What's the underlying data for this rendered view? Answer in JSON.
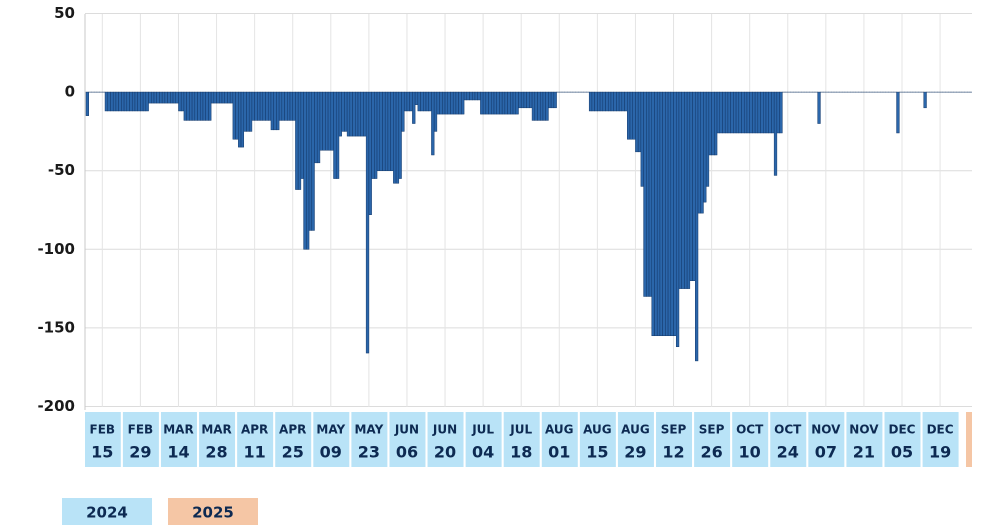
{
  "chart_data": {
    "type": "bar",
    "color": "#2b66aa",
    "edge_color": "#12386a",
    "grid": true,
    "ylim": [
      -200,
      50
    ],
    "yticks": [
      50,
      0,
      -50,
      -100,
      -150,
      -200
    ],
    "xlim": [
      0,
      326
    ],
    "xticks": [
      {
        "value": 6,
        "month": "FEB",
        "day": "15"
      },
      {
        "value": 20,
        "month": "FEB",
        "day": "29"
      },
      {
        "value": 34,
        "month": "MAR",
        "day": "14"
      },
      {
        "value": 48,
        "month": "MAR",
        "day": "28"
      },
      {
        "value": 62,
        "month": "APR",
        "day": "11"
      },
      {
        "value": 76,
        "month": "APR",
        "day": "25"
      },
      {
        "value": 90,
        "month": "MAY",
        "day": "09"
      },
      {
        "value": 104,
        "month": "MAY",
        "day": "23"
      },
      {
        "value": 118,
        "month": "JUN",
        "day": "06"
      },
      {
        "value": 132,
        "month": "JUN",
        "day": "20"
      },
      {
        "value": 146,
        "month": "JUL",
        "day": "04"
      },
      {
        "value": 160,
        "month": "JUL",
        "day": "18"
      },
      {
        "value": 174,
        "month": "AUG",
        "day": "01"
      },
      {
        "value": 188,
        "month": "AUG",
        "day": "15"
      },
      {
        "value": 202,
        "month": "AUG",
        "day": "29"
      },
      {
        "value": 216,
        "month": "SEP",
        "day": "12"
      },
      {
        "value": 230,
        "month": "SEP",
        "day": "26"
      },
      {
        "value": 244,
        "month": "OCT",
        "day": "10"
      },
      {
        "value": 258,
        "month": "OCT",
        "day": "24"
      },
      {
        "value": 272,
        "month": "NOV",
        "day": "07"
      },
      {
        "value": 286,
        "month": "NOV",
        "day": "21"
      },
      {
        "value": 300,
        "month": "DEC",
        "day": "05"
      },
      {
        "value": 314,
        "month": "DEC",
        "day": "19"
      }
    ],
    "legend": [
      {
        "name": "2024",
        "color": "#b9e3f7"
      },
      {
        "name": "2025",
        "color": "#f5c6a5"
      }
    ],
    "values": [
      -15,
      0,
      0,
      0,
      0,
      0,
      0,
      -12,
      -12,
      -12,
      -12,
      -12,
      -12,
      -12,
      -12,
      -12,
      -12,
      -12,
      -12,
      -12,
      -12,
      -12,
      -12,
      -7,
      -7,
      -7,
      -7,
      -7,
      -7,
      -7,
      -7,
      -7,
      -7,
      -7,
      -12,
      -12,
      -18,
      -18,
      -18,
      -18,
      -18,
      -18,
      -18,
      -18,
      -18,
      -18,
      -7,
      -7,
      -7,
      -7,
      -7,
      -7,
      -7,
      -7,
      -30,
      -30,
      -35,
      -35,
      -25,
      -25,
      -25,
      -18,
      -18,
      -18,
      -18,
      -18,
      -18,
      -18,
      -24,
      -24,
      -24,
      -18,
      -18,
      -18,
      -18,
      -18,
      -18,
      -62,
      -62,
      -55,
      -100,
      -100,
      -88,
      -88,
      -45,
      -45,
      -37,
      -37,
      -37,
      -37,
      -37,
      -55,
      -55,
      -28,
      -25,
      -25,
      -28,
      -28,
      -28,
      -28,
      -28,
      -28,
      -28,
      -166,
      -78,
      -55,
      -55,
      -50,
      -50,
      -50,
      -50,
      -50,
      -50,
      -58,
      -58,
      -55,
      -25,
      -12,
      -12,
      -12,
      -20,
      -8,
      -12,
      -12,
      -12,
      -12,
      -12,
      -40,
      -25,
      -14,
      -14,
      -14,
      -14,
      -14,
      -14,
      -14,
      -14,
      -14,
      -14,
      -5,
      -5,
      -5,
      -5,
      -5,
      -5,
      -14,
      -14,
      -14,
      -14,
      -14,
      -14,
      -14,
      -14,
      -14,
      -14,
      -14,
      -14,
      -14,
      -14,
      -10,
      -10,
      -10,
      -10,
      -10,
      -18,
      -18,
      -18,
      -18,
      -18,
      -18,
      -10,
      -10,
      -10,
      0,
      0,
      0,
      0,
      0,
      0,
      0,
      0,
      0,
      0,
      0,
      0,
      -12,
      -12,
      -12,
      -12,
      -12,
      -12,
      -12,
      -12,
      -12,
      -12,
      -12,
      -12,
      -12,
      -12,
      -30,
      -30,
      -30,
      -38,
      -38,
      -60,
      -130,
      -130,
      -130,
      -155,
      -155,
      -155,
      -155,
      -155,
      -155,
      -155,
      -155,
      -155,
      -162,
      -125,
      -125,
      -125,
      -125,
      -120,
      -120,
      -171,
      -77,
      -77,
      -70,
      -60,
      -40,
      -40,
      -40,
      -26,
      -26,
      -26,
      -26,
      -26,
      -26,
      -26,
      -26,
      -26,
      -26,
      -26,
      -26,
      -26,
      -26,
      -26,
      -26,
      -26,
      -26,
      -26,
      -26,
      -26,
      -53,
      -26,
      -26,
      0,
      0,
      0,
      0,
      0,
      0,
      0,
      0,
      0,
      0,
      0,
      0,
      0,
      -20,
      0,
      0,
      0,
      0,
      0,
      0,
      0,
      0,
      0,
      0,
      0,
      0,
      0,
      0,
      0,
      0,
      0,
      0,
      0,
      0,
      0,
      0,
      0,
      0,
      0,
      0,
      0,
      0,
      -26,
      0,
      0,
      0,
      0,
      0,
      0,
      0,
      0,
      0,
      -10,
      0,
      0,
      0,
      0,
      0,
      0,
      0,
      0,
      0,
      0,
      0,
      0,
      0,
      0,
      0,
      0,
      0
    ]
  }
}
